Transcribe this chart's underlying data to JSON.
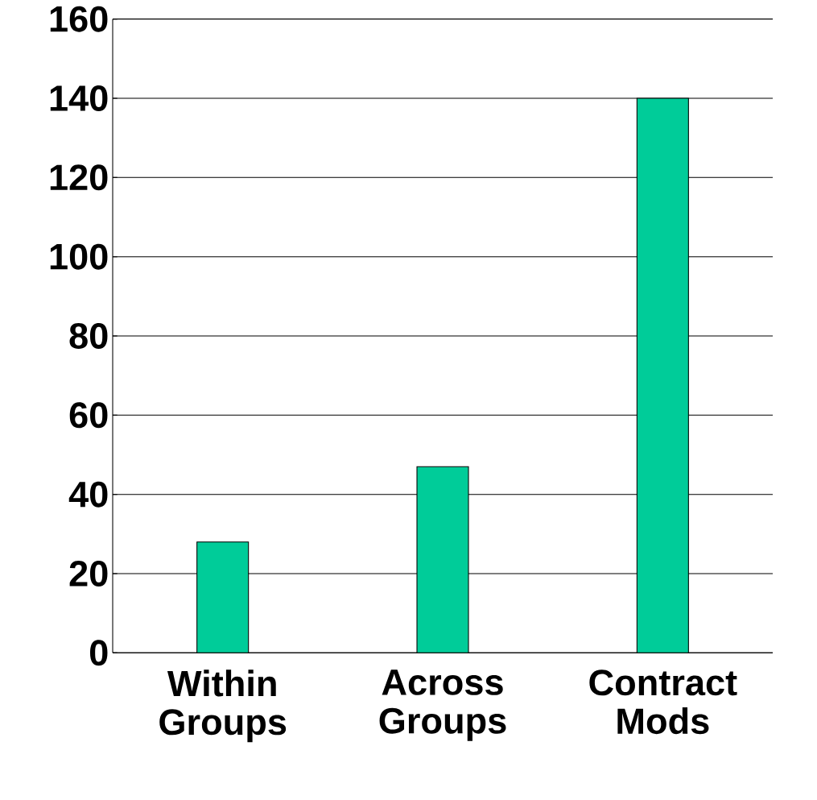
{
  "chart_data": {
    "type": "bar",
    "categories": [
      "Within Groups",
      "Across Groups",
      "Contract Mods"
    ],
    "values": [
      28,
      47,
      140
    ],
    "color": "#00cc99",
    "ylim": [
      0,
      160
    ],
    "yticks": [
      0,
      20,
      40,
      60,
      80,
      100,
      120,
      140,
      160
    ],
    "grid": "y"
  }
}
